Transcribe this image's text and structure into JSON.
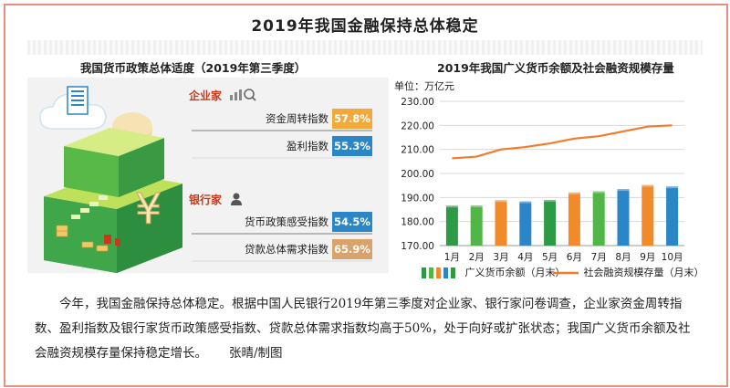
{
  "title": "2019年我国金融保持总体稳定",
  "left": {
    "subtitle": "我国货币政策总体适度（2019年第三季度）",
    "groups": [
      {
        "name": "企业家",
        "icon": "magnifier-chart-icon",
        "items": [
          {
            "label": "资金周转指数",
            "value": "57.8%",
            "color": "#f2a93b"
          },
          {
            "label": "盈利指数",
            "value": "55.3%",
            "color": "#2a86c6"
          }
        ]
      },
      {
        "name": "银行家",
        "icon": "banker-icon",
        "items": [
          {
            "label": "货币政策感受指数",
            "value": "54.5%",
            "color": "#2a86c6"
          },
          {
            "label": "贷款总体需求指数",
            "value": "65.9%",
            "color": "#d9a26a"
          }
        ]
      }
    ]
  },
  "chart_data": {
    "type": "bar",
    "title": "2019年我国广义货币余额及社会融资规模存量",
    "unit_label": "单位：万亿元",
    "categories": [
      "1月",
      "2月",
      "3月",
      "4月",
      "5月",
      "6月",
      "7月",
      "8月",
      "9月",
      "10月"
    ],
    "ylim": [
      170,
      230
    ],
    "yticks": [
      "170.00",
      "180.00",
      "190.00",
      "200.00",
      "210.00",
      "220.00",
      "230.00"
    ],
    "series": [
      {
        "name": "广义货币余额（月末）",
        "kind": "bar",
        "values": [
          186.6,
          186.7,
          188.9,
          188.4,
          189.0,
          192.1,
          192.6,
          193.5,
          195.2,
          194.6
        ],
        "colors": [
          "#2e9a46",
          "#52b548",
          "#f08a2b",
          "#2a86c6",
          "#2e9a46",
          "#f08a2b",
          "#52b548",
          "#2a86c6",
          "#f08a2b",
          "#2a86c6"
        ]
      },
      {
        "name": "社会融资规模存量（月末）",
        "kind": "line",
        "values": [
          206.3,
          207.0,
          210.0,
          211.0,
          212.5,
          214.5,
          215.5,
          217.5,
          219.5,
          220.0
        ],
        "color": "#ef7d2a"
      }
    ],
    "grid": true,
    "legend_position": "bottom"
  },
  "caption": {
    "text": "今年，我国金融保持总体稳定。根据中国人民银行2019年第三季度对企业家、银行家问卷调查，企业家资金周转指数、盈利指数及银行家货币政策感受指数、贷款总体需求指数均高于50%，处于向好或扩张状态；我国广义货币余额及社会融资规模存量保持稳定增长。",
    "credit": "张晴/制图"
  }
}
